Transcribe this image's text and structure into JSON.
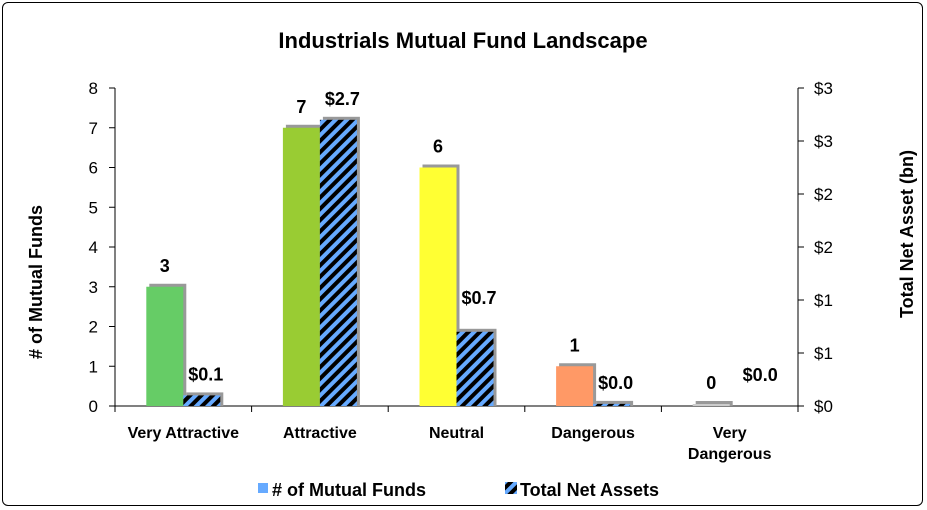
{
  "chart_data": {
    "type": "bar",
    "title": "Industrials Mutual Fund Landscape",
    "categories": [
      "Very Attractive",
      "Attractive",
      "Neutral",
      "Dangerous",
      "Very Dangerous"
    ],
    "category_lines": [
      [
        "Very Attractive"
      ],
      [
        "Attractive"
      ],
      [
        "Neutral"
      ],
      [
        "Dangerous"
      ],
      [
        "Very",
        "Dangerous"
      ]
    ],
    "ylabel": "# of Mutual Funds",
    "y2label": "Total Net Asset (bn)",
    "ylim": [
      0,
      8
    ],
    "y2lim": [
      0,
      3
    ],
    "y_ticks": [
      "0",
      "1",
      "2",
      "3",
      "4",
      "5",
      "6",
      "7",
      "8"
    ],
    "y2_ticks": [
      "$0",
      "$1",
      "$1",
      "$2",
      "$2",
      "$3",
      "$3"
    ],
    "series": [
      {
        "name": "# of Mutual Funds",
        "axis": "left",
        "values": [
          3,
          7,
          6,
          1,
          0
        ],
        "labels": [
          "3",
          "7",
          "6",
          "1",
          "0"
        ],
        "colors": [
          "#66cc66",
          "#99cc33",
          "#ffff33",
          "#ff9966",
          "#cccccc"
        ]
      },
      {
        "name": "Total Net Assets",
        "axis": "right",
        "values": [
          0.1,
          2.7,
          0.7,
          0.02,
          0.0
        ],
        "labels": [
          "$0.1",
          "$2.7",
          "$0.7",
          "$0.0",
          "$0.0"
        ],
        "pattern_colors": [
          "#000000",
          "#66aaff"
        ]
      }
    ],
    "legend": {
      "position": "bottom",
      "items": [
        "# of Mutual Funds",
        "Total Net Assets"
      ]
    },
    "grid": false
  }
}
